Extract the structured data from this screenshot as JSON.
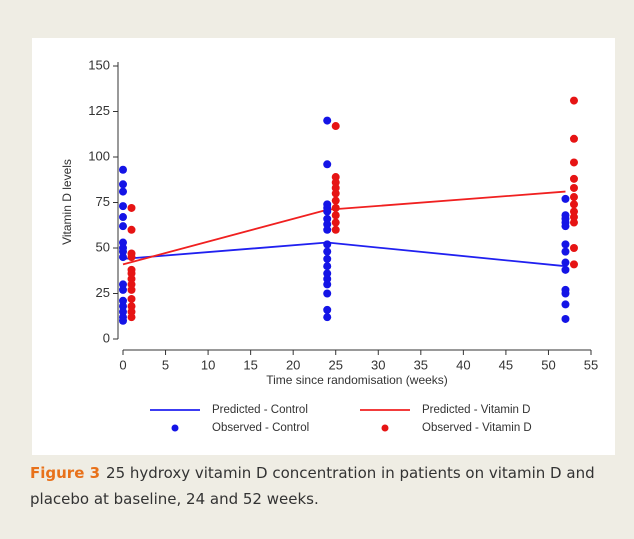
{
  "chart_data": {
    "type": "scatter",
    "y_label": "Vitamin D levels",
    "x_label": "Time since randomisation (weeks)",
    "xlim": [
      0,
      55
    ],
    "xticks": [
      0,
      5,
      10,
      15,
      20,
      25,
      30,
      35,
      40,
      45,
      50,
      55
    ],
    "ylim": [
      0,
      150
    ],
    "yticks": [
      0,
      25,
      50,
      75,
      100,
      125,
      150
    ],
    "series": [
      {
        "name": "Predicted - Control",
        "type": "line",
        "color": "#2020f0",
        "x": [
          0,
          24,
          52
        ],
        "values": [
          44,
          53,
          40
        ]
      },
      {
        "name": "Predicted - Vitamin D",
        "type": "line",
        "color": "#f02020",
        "x": [
          0,
          24,
          52
        ],
        "values": [
          41,
          71,
          81
        ]
      },
      {
        "name": "Observed - Control",
        "type": "scatter",
        "color": "#1414e6",
        "x": [
          0,
          0,
          0,
          0,
          0,
          0,
          0,
          0,
          0,
          0,
          0,
          0,
          0,
          0,
          0,
          0,
          0,
          24,
          24,
          24,
          24,
          24,
          24,
          24,
          24,
          24,
          24,
          24,
          24,
          24,
          24,
          24,
          24,
          24,
          24,
          52,
          52,
          52,
          52,
          52,
          52,
          52,
          52,
          52,
          52,
          52,
          52,
          52
        ],
        "values": [
          93,
          85,
          81,
          73,
          67,
          62,
          53,
          50,
          48,
          45,
          30,
          27,
          21,
          18,
          15,
          12,
          10,
          120,
          96,
          74,
          72,
          70,
          66,
          63,
          60,
          52,
          48,
          44,
          40,
          36,
          33,
          30,
          25,
          16,
          12,
          77,
          68,
          66,
          64,
          62,
          52,
          48,
          42,
          38,
          27,
          25,
          19,
          11
        ]
      },
      {
        "name": "Observed - Vitamin D",
        "type": "scatter",
        "color": "#e61414",
        "x": [
          1,
          1,
          1,
          1,
          1,
          1,
          1,
          1,
          1,
          1,
          1,
          1,
          1,
          25,
          25,
          25,
          25,
          25,
          25,
          25,
          25,
          25,
          25,
          53,
          53,
          53,
          53,
          53,
          53,
          53,
          53,
          53,
          53,
          53,
          53
        ],
        "values": [
          72,
          60,
          47,
          45,
          38,
          36,
          33,
          30,
          27,
          22,
          18,
          15,
          12,
          117,
          89,
          86,
          83,
          80,
          76,
          72,
          68,
          64,
          60,
          131,
          110,
          97,
          88,
          83,
          78,
          74,
          70,
          67,
          64,
          50,
          41
        ]
      }
    ]
  },
  "caption": {
    "label": "Figure 3",
    "text": "25 hydroxy vitamin D concentration in patients on vitamin D and placebo at baseline, 24 and 52 weeks."
  }
}
